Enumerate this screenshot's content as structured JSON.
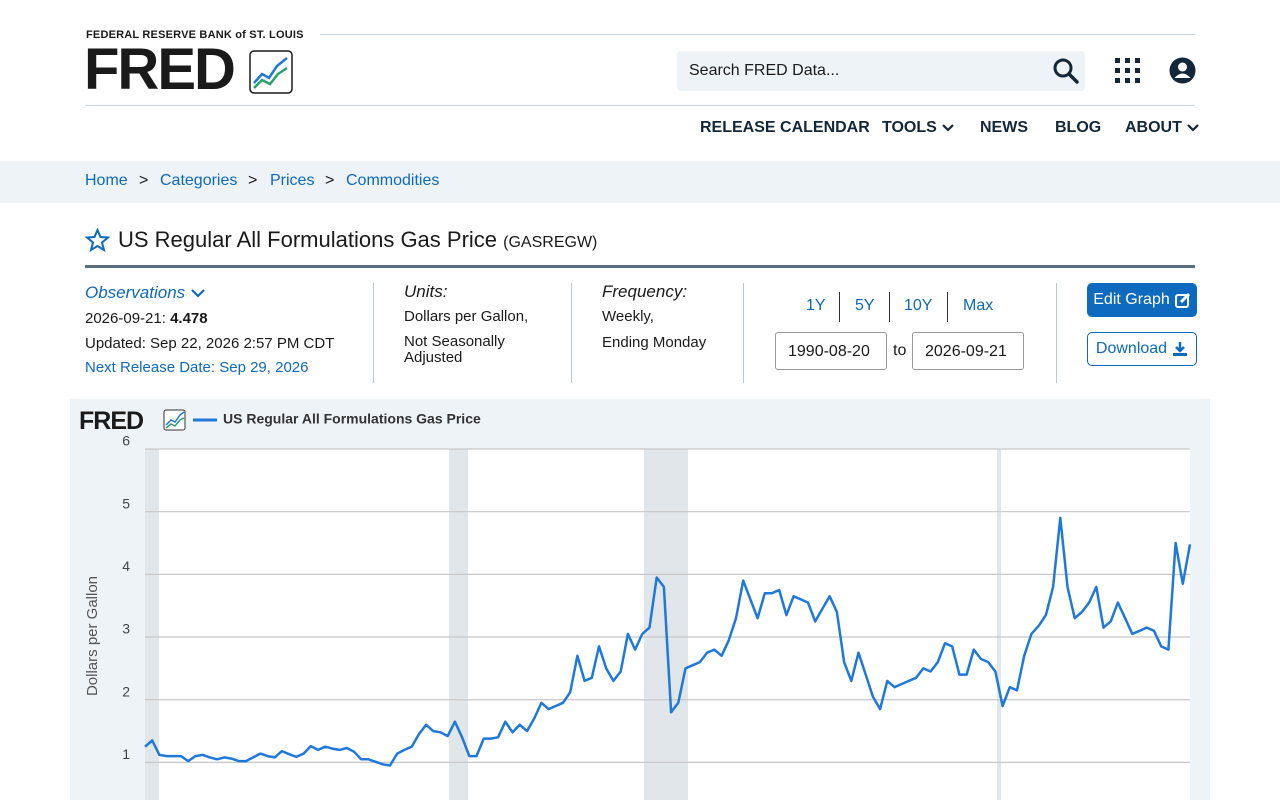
{
  "header": {
    "org": "FEDERAL RESERVE BANK of ST. LOUIS",
    "logo": "FRED",
    "search_placeholder": "Search FRED Data...",
    "nav": [
      "RELEASE CALENDAR",
      "TOOLS",
      "NEWS",
      "BLOG",
      "ABOUT"
    ]
  },
  "breadcrumb": {
    "items": [
      "Home",
      "Categories",
      "Prices",
      "Commodities"
    ],
    "separator": ">"
  },
  "series": {
    "title": "US Regular All Formulations Gas Price",
    "id": "(GASREGW)"
  },
  "observations": {
    "label": "Observations",
    "date": "2026-09-21:",
    "value": "4.478",
    "updated": "Updated: Sep 22, 2026 2:57 PM CDT",
    "next_release": "Next Release Date: Sep 29, 2026"
  },
  "units": {
    "label": "Units:",
    "lines": [
      "Dollars per Gallon,",
      "Not Seasonally Adjusted"
    ]
  },
  "frequency": {
    "label": "Frequency:",
    "lines": [
      "Weekly,",
      "Ending Monday"
    ]
  },
  "range": {
    "buttons": [
      "1Y",
      "5Y",
      "10Y",
      "Max"
    ],
    "start": "1990-08-20",
    "to": "to",
    "end": "2026-09-21"
  },
  "actions": {
    "edit": "Edit Graph",
    "download": "Download"
  },
  "chart_data": {
    "type": "line",
    "logo": "FRED",
    "y_label": "Dollars per Gallon",
    "grid": true,
    "ylim": [
      0.4,
      6
    ],
    "yticks": [
      1,
      2,
      3,
      4,
      5,
      6
    ],
    "series": [
      {
        "name": "US Regular All Formulations Gas Price",
        "color": "#1f78dc",
        "values": [
          1.25,
          1.35,
          1.12,
          1.1,
          1.1,
          1.1,
          1.02,
          1.1,
          1.12,
          1.08,
          1.05,
          1.08,
          1.06,
          1.02,
          1.02,
          1.08,
          1.14,
          1.1,
          1.08,
          1.18,
          1.13,
          1.09,
          1.14,
          1.26,
          1.2,
          1.25,
          1.22,
          1.2,
          1.23,
          1.17,
          1.05,
          1.05,
          1.01,
          0.97,
          0.95,
          1.14,
          1.2,
          1.25,
          1.45,
          1.6,
          1.5,
          1.48,
          1.42,
          1.65,
          1.4,
          1.1,
          1.1,
          1.38,
          1.38,
          1.4,
          1.65,
          1.48,
          1.6,
          1.5,
          1.7,
          1.95,
          1.85,
          1.9,
          1.95,
          2.12,
          2.7,
          2.3,
          2.35,
          2.85,
          2.5,
          2.3,
          2.45,
          3.05,
          2.8,
          3.05,
          3.15,
          3.95,
          3.8,
          1.8,
          1.95,
          2.5,
          2.55,
          2.6,
          2.75,
          2.8,
          2.7,
          2.95,
          3.3,
          3.9,
          3.6,
          3.3,
          3.7,
          3.7,
          3.75,
          3.35,
          3.65,
          3.6,
          3.55,
          3.25,
          3.45,
          3.65,
          3.4,
          2.6,
          2.3,
          2.75,
          2.4,
          2.05,
          1.85,
          2.3,
          2.2,
          2.25,
          2.3,
          2.35,
          2.5,
          2.45,
          2.6,
          2.9,
          2.85,
          2.4,
          2.4,
          2.8,
          2.65,
          2.6,
          2.45,
          1.9,
          2.2,
          2.15,
          2.7,
          3.05,
          3.18,
          3.35,
          3.8,
          4.9,
          3.8,
          3.3,
          3.4,
          3.55,
          3.8,
          3.15,
          3.25,
          3.55,
          3.3,
          3.05,
          3.1,
          3.15,
          3.1,
          2.85,
          2.8,
          4.5,
          3.85,
          4.478
        ]
      }
    ]
  }
}
